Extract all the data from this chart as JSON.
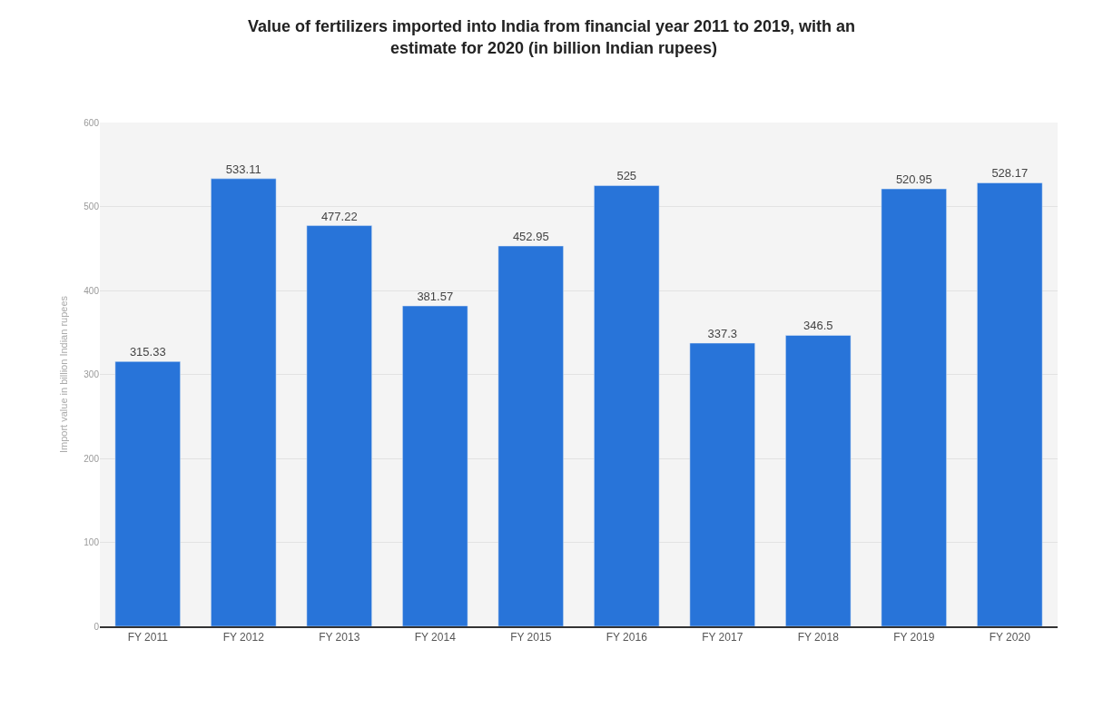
{
  "chart_data": {
    "type": "bar",
    "title": "Value of fertilizers imported into India from financial year 2011 to 2019, with an estimate for 2020 (in billion Indian rupees)",
    "ylabel": "Import value in billion Indian rupees",
    "categories": [
      "FY 2011",
      "FY 2012",
      "FY 2013",
      "FY 2014",
      "FY 2015",
      "FY 2016",
      "FY 2017",
      "FY 2018",
      "FY 2019",
      "FY 2020"
    ],
    "values": [
      315.33,
      533.11,
      477.22,
      381.57,
      452.95,
      525,
      337.3,
      346.5,
      520.95,
      528.17
    ],
    "color": "#2874d9",
    "ylim": [
      0,
      600
    ],
    "yticks": [
      0,
      100,
      200,
      300,
      400,
      500,
      600
    ],
    "grid": "y",
    "data_labels": true
  }
}
